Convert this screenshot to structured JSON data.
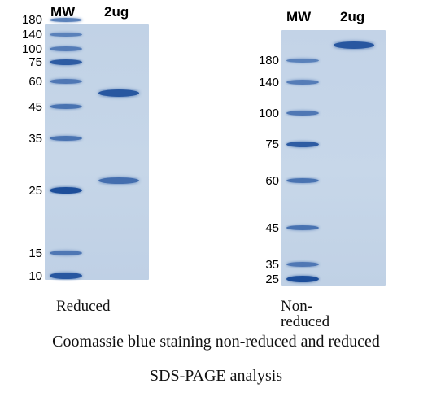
{
  "left_panel": {
    "header_mw": "MW",
    "header_sample": "2ug",
    "caption": "Reduced",
    "ladder": [
      {
        "label": "180",
        "kda": 180,
        "intensity": 0.45
      },
      {
        "label": "140",
        "kda": 140,
        "intensity": 0.45
      },
      {
        "label": "100",
        "kda": 100,
        "intensity": 0.5
      },
      {
        "label": "75",
        "kda": 75,
        "intensity": 0.85
      },
      {
        "label": "60",
        "kda": 60,
        "intensity": 0.55
      },
      {
        "label": "45",
        "kda": 45,
        "intensity": 0.6
      },
      {
        "label": "35",
        "kda": 35,
        "intensity": 0.6
      },
      {
        "label": "25",
        "kda": 25,
        "intensity": 1.0
      },
      {
        "label": "15",
        "kda": 15,
        "intensity": 0.55
      },
      {
        "label": "10",
        "kda": 10,
        "intensity": 0.9
      }
    ],
    "sample_bands": [
      {
        "kda": 52,
        "intensity": 0.9
      },
      {
        "kda": 27,
        "intensity": 0.65
      }
    ]
  },
  "right_panel": {
    "header_mw": "MW",
    "header_sample": "2ug",
    "caption": "Non-reduced",
    "ladder": [
      {
        "label": "180",
        "kda": 180,
        "intensity": 0.45
      },
      {
        "label": "140",
        "kda": 140,
        "intensity": 0.5
      },
      {
        "label": "100",
        "kda": 100,
        "intensity": 0.55
      },
      {
        "label": "75",
        "kda": 75,
        "intensity": 0.85
      },
      {
        "label": "60",
        "kda": 60,
        "intensity": 0.6
      },
      {
        "label": "45",
        "kda": 45,
        "intensity": 0.6
      },
      {
        "label": "35",
        "kda": 35,
        "intensity": 0.55
      },
      {
        "label": "25",
        "kda": 25,
        "intensity": 1.0
      }
    ],
    "sample_bands": [
      {
        "kda": 200,
        "intensity": 0.9
      }
    ]
  },
  "figure_caption_line1": "Coomassie blue staining non-reduced and reduced",
  "figure_caption_line2": "SDS-PAGE analysis",
  "colors": {
    "gel_background": "#c4d4e7",
    "band_color": "#1d4e9a",
    "dark_band_color": "#0f3070"
  }
}
